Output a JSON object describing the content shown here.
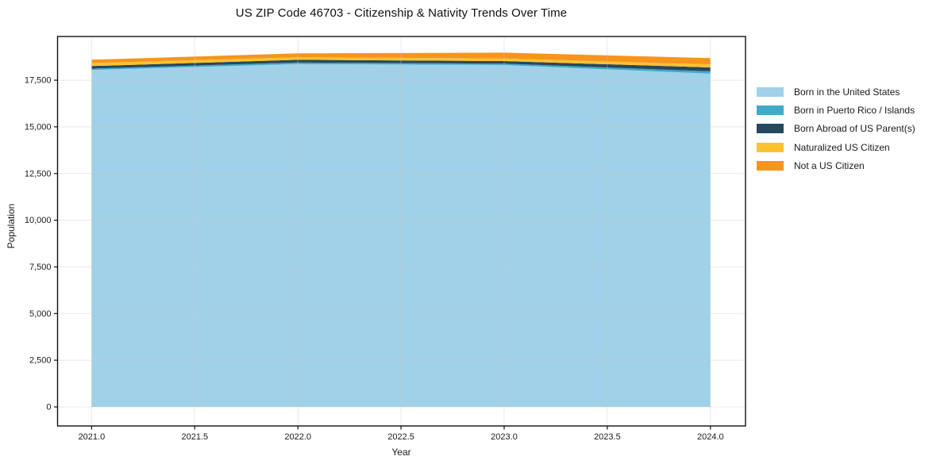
{
  "chart_data": {
    "type": "area",
    "stacked": true,
    "title": "US ZIP Code 46703 - Citizenship & Nativity Trends Over Time",
    "xlabel": "Year",
    "ylabel": "Population",
    "x": [
      2021,
      2022,
      2023,
      2024
    ],
    "series": [
      {
        "name": "Born in the United States",
        "color": "#a0d1e8",
        "values": [
          18050,
          18360,
          18310,
          17850
        ]
      },
      {
        "name": "Born in Puerto Rico / Islands",
        "color": "#41a9c9",
        "values": [
          70,
          85,
          75,
          125
        ]
      },
      {
        "name": "Born Abroad of US Parent(s)",
        "color": "#26485c",
        "values": [
          135,
          145,
          140,
          210
        ]
      },
      {
        "name": "Naturalized US Citizen",
        "color": "#fcc22f",
        "values": [
          165,
          140,
          140,
          160
        ]
      },
      {
        "name": "Not a US Citizen",
        "color": "#f6941e",
        "values": [
          175,
          205,
          310,
          340
        ]
      }
    ],
    "x_ticks": [
      2021.0,
      2021.5,
      2022.0,
      2022.5,
      2023.0,
      2023.5,
      2024.0
    ],
    "x_tick_labels": [
      "2021.0",
      "2021.5",
      "2022.0",
      "2022.5",
      "2023.0",
      "2023.5",
      "2024.0"
    ],
    "y_ticks": [
      0,
      2500,
      5000,
      7500,
      10000,
      12500,
      15000,
      17500
    ],
    "y_tick_labels": [
      "0",
      "2,500",
      "5,000",
      "7,500",
      "10,000",
      "12,500",
      "15,000",
      "17,500"
    ],
    "xlim": [
      2020.835,
      2024.17
    ],
    "ylim": [
      -1020,
      19840
    ],
    "grid": true,
    "legend_position": "right"
  }
}
